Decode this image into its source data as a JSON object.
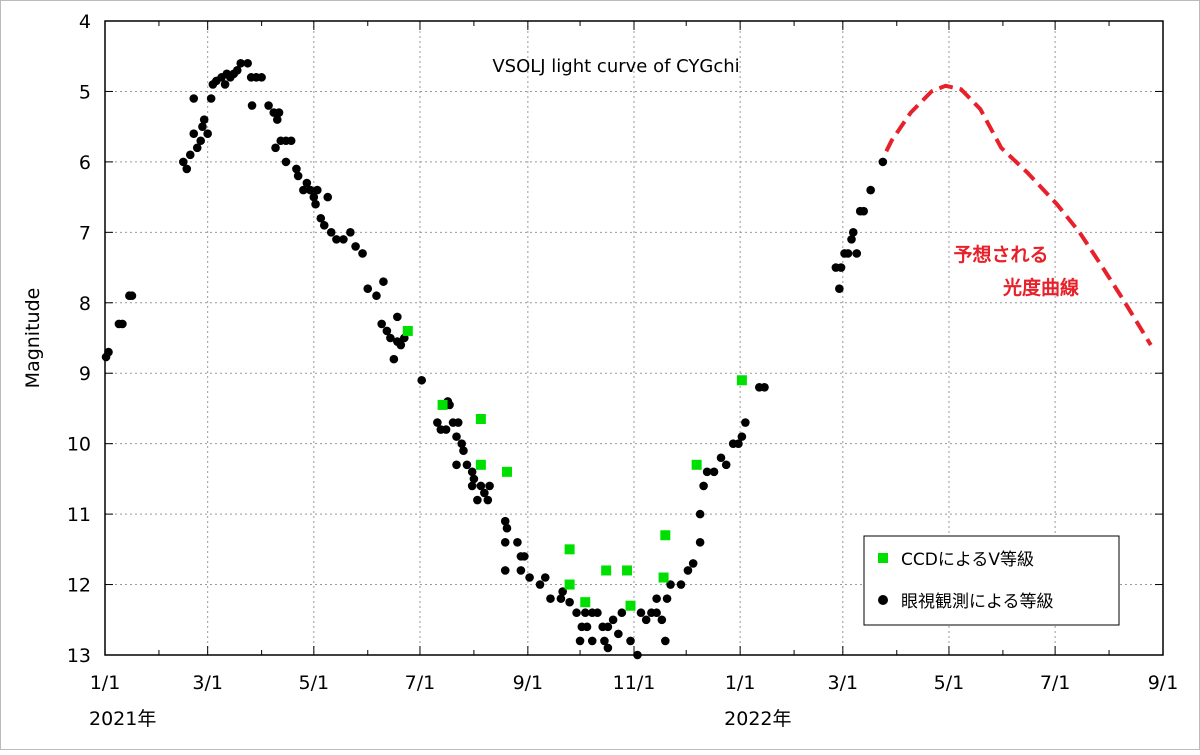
{
  "chart_data": {
    "type": "scatter",
    "title": "VSOLJ light curve of CYGchi",
    "xlabel": "",
    "ylabel": "Magnitude",
    "x_unit": "days since 2021-01-01",
    "xlim": [
      0,
      608
    ],
    "ylim": [
      13,
      4
    ],
    "y_inverted": true,
    "grid": true,
    "y_ticks": [
      "4",
      "5",
      "6",
      "7",
      "8",
      "9",
      "10",
      "11",
      "12",
      "13"
    ],
    "x_ticks": [
      {
        "day": 0,
        "label": "1/1"
      },
      {
        "day": 59,
        "label": "3/1"
      },
      {
        "day": 120,
        "label": "5/1"
      },
      {
        "day": 181,
        "label": "7/1"
      },
      {
        "day": 243,
        "label": "9/1"
      },
      {
        "day": 304,
        "label": "11/1"
      },
      {
        "day": 365,
        "label": "1/1"
      },
      {
        "day": 424,
        "label": "3/1"
      },
      {
        "day": 485,
        "label": "5/1"
      },
      {
        "day": 546,
        "label": "7/1"
      },
      {
        "day": 608,
        "label": "9/1"
      }
    ],
    "minor_ticks_days": [
      31,
      90,
      151,
      212,
      273,
      334,
      396,
      455,
      516,
      577
    ],
    "year_labels": [
      {
        "day": 0,
        "label": "2021年"
      },
      {
        "day": 365,
        "label": "2022年"
      }
    ],
    "legend": {
      "placement": "bottom-right",
      "entries": [
        "CCDによるV等級",
        "眼視観測による等級"
      ]
    },
    "annotation": {
      "lines": [
        "予想される",
        "光度曲線"
      ],
      "color": "#e8202a"
    },
    "colors": {
      "visual": "#000000",
      "ccd": "#00e000",
      "predicted": "#e8202a"
    },
    "series": [
      {
        "name": "眼視観測による等級",
        "marker": "circle",
        "points": [
          [
            0.6,
            8.77
          ],
          [
            2,
            8.7
          ],
          [
            8,
            8.3
          ],
          [
            10,
            8.3
          ],
          [
            14,
            7.9
          ],
          [
            15.5,
            7.9
          ],
          [
            45,
            6.0
          ],
          [
            47,
            6.1
          ],
          [
            49,
            5.9
          ],
          [
            51,
            5.1
          ],
          [
            51,
            5.6
          ],
          [
            53,
            5.8
          ],
          [
            55,
            5.7
          ],
          [
            56,
            5.5
          ],
          [
            57,
            5.4
          ],
          [
            59,
            5.6
          ],
          [
            61,
            5.1
          ],
          [
            62,
            4.9
          ],
          [
            64,
            4.85
          ],
          [
            67,
            4.8
          ],
          [
            69,
            4.9
          ],
          [
            70,
            4.75
          ],
          [
            72,
            4.8
          ],
          [
            74,
            4.75
          ],
          [
            76,
            4.7
          ],
          [
            78,
            4.6
          ],
          [
            82,
            4.6
          ],
          [
            84,
            4.8
          ],
          [
            87,
            4.8
          ],
          [
            90,
            4.8
          ],
          [
            84.5,
            5.2
          ],
          [
            94,
            5.2
          ],
          [
            97,
            5.3
          ],
          [
            99,
            5.4
          ],
          [
            100,
            5.3
          ],
          [
            98,
            5.8
          ],
          [
            101,
            5.7
          ],
          [
            104,
            5.7
          ],
          [
            107,
            5.7
          ],
          [
            104,
            6.0
          ],
          [
            110,
            6.1
          ],
          [
            111,
            6.2
          ],
          [
            114,
            6.4
          ],
          [
            116,
            6.3
          ],
          [
            118,
            6.4
          ],
          [
            120,
            6.5
          ],
          [
            122,
            6.4
          ],
          [
            121,
            6.6
          ],
          [
            124,
            6.8
          ],
          [
            128,
            6.5
          ],
          [
            126,
            6.9
          ],
          [
            130,
            7.0
          ],
          [
            133,
            7.1
          ],
          [
            137,
            7.1
          ],
          [
            141,
            7.0
          ],
          [
            144,
            7.2
          ],
          [
            148,
            7.3
          ],
          [
            151,
            7.8
          ],
          [
            156,
            7.9
          ],
          [
            160,
            7.7
          ],
          [
            159,
            8.3
          ],
          [
            162,
            8.4
          ],
          [
            164,
            8.5
          ],
          [
            166,
            8.8
          ],
          [
            168,
            8.55
          ],
          [
            168,
            8.2
          ],
          [
            170,
            8.6
          ],
          [
            172,
            8.5
          ],
          [
            182,
            9.1
          ],
          [
            191,
            9.7
          ],
          [
            193,
            9.8
          ],
          [
            197,
            9.4
          ],
          [
            198,
            9.45
          ],
          [
            196,
            9.8
          ],
          [
            200,
            9.7
          ],
          [
            203,
            9.7
          ],
          [
            202,
            9.9
          ],
          [
            205,
            10.0
          ],
          [
            206,
            10.1
          ],
          [
            202,
            10.3
          ],
          [
            208,
            10.3
          ],
          [
            211,
            10.4
          ],
          [
            212,
            10.5
          ],
          [
            211,
            10.6
          ],
          [
            216,
            10.6
          ],
          [
            218,
            10.7
          ],
          [
            214,
            10.8
          ],
          [
            220,
            10.8
          ],
          [
            221,
            10.6
          ],
          [
            230,
            11.1
          ],
          [
            231,
            11.2
          ],
          [
            230,
            11.4
          ],
          [
            237,
            11.4
          ],
          [
            239,
            11.6
          ],
          [
            241,
            11.6
          ],
          [
            230,
            11.8
          ],
          [
            239,
            11.8
          ],
          [
            244,
            11.9
          ],
          [
            250,
            12.0
          ],
          [
            253,
            11.9
          ],
          [
            256,
            12.2
          ],
          [
            262,
            12.2
          ],
          [
            263,
            12.1
          ],
          [
            267,
            12.25
          ],
          [
            271,
            12.4
          ],
          [
            276,
            12.4
          ],
          [
            280,
            12.4
          ],
          [
            283,
            12.4
          ],
          [
            274,
            12.6
          ],
          [
            277,
            12.6
          ],
          [
            273,
            12.8
          ],
          [
            280,
            12.8
          ],
          [
            286,
            12.6
          ],
          [
            289,
            12.6
          ],
          [
            292,
            12.5
          ],
          [
            287,
            12.8
          ],
          [
            289,
            12.9
          ],
          [
            295,
            12.7
          ],
          [
            297,
            12.4
          ],
          [
            302,
            12.8
          ],
          [
            306,
            13.0
          ],
          [
            308,
            12.4
          ],
          [
            311,
            12.5
          ],
          [
            314,
            12.4
          ],
          [
            317,
            12.4
          ],
          [
            322,
            12.8
          ],
          [
            320,
            12.5
          ],
          [
            317,
            12.2
          ],
          [
            323,
            12.2
          ],
          [
            325,
            12.0
          ],
          [
            331,
            12.0
          ],
          [
            335,
            11.8
          ],
          [
            338,
            11.7
          ],
          [
            342,
            11.4
          ],
          [
            342,
            11.0
          ],
          [
            344,
            10.6
          ],
          [
            346,
            10.4
          ],
          [
            350,
            10.4
          ],
          [
            354,
            10.2
          ],
          [
            357,
            10.3
          ],
          [
            361,
            10.0
          ],
          [
            364,
            10.0
          ],
          [
            366,
            9.9
          ],
          [
            368,
            9.7
          ],
          [
            376,
            9.2
          ],
          [
            379,
            9.2
          ],
          [
            422,
            7.8
          ],
          [
            420,
            7.5
          ],
          [
            423,
            7.5
          ],
          [
            425,
            7.3
          ],
          [
            427,
            7.3
          ],
          [
            429,
            7.1
          ],
          [
            430,
            7.0
          ],
          [
            432,
            7.3
          ],
          [
            434,
            6.7
          ],
          [
            436,
            6.7
          ],
          [
            440,
            6.4
          ],
          [
            447,
            6.0
          ]
        ]
      },
      {
        "name": "CCDによるV等級",
        "marker": "square",
        "points": [
          [
            174,
            8.4
          ],
          [
            194,
            9.45
          ],
          [
            216,
            9.65
          ],
          [
            216,
            10.3
          ],
          [
            231,
            10.4
          ],
          [
            267,
            11.5
          ],
          [
            267,
            12.0
          ],
          [
            276,
            12.25
          ],
          [
            288,
            11.8
          ],
          [
            300,
            11.8
          ],
          [
            302,
            12.3
          ],
          [
            322,
            11.3
          ],
          [
            321,
            11.9
          ],
          [
            340,
            10.3
          ],
          [
            366,
            9.1
          ]
        ]
      },
      {
        "name": "予想される光度曲線",
        "marker": "dashed-line",
        "points": [
          [
            449,
            5.85
          ],
          [
            452,
            5.7
          ],
          [
            463,
            5.3
          ],
          [
            475,
            5.0
          ],
          [
            483,
            4.92
          ],
          [
            492,
            4.97
          ],
          [
            503,
            5.25
          ],
          [
            515,
            5.8
          ],
          [
            530,
            6.15
          ],
          [
            547,
            6.6
          ],
          [
            560,
            7.0
          ],
          [
            572,
            7.45
          ],
          [
            585,
            7.95
          ],
          [
            601,
            8.6
          ]
        ]
      }
    ]
  }
}
